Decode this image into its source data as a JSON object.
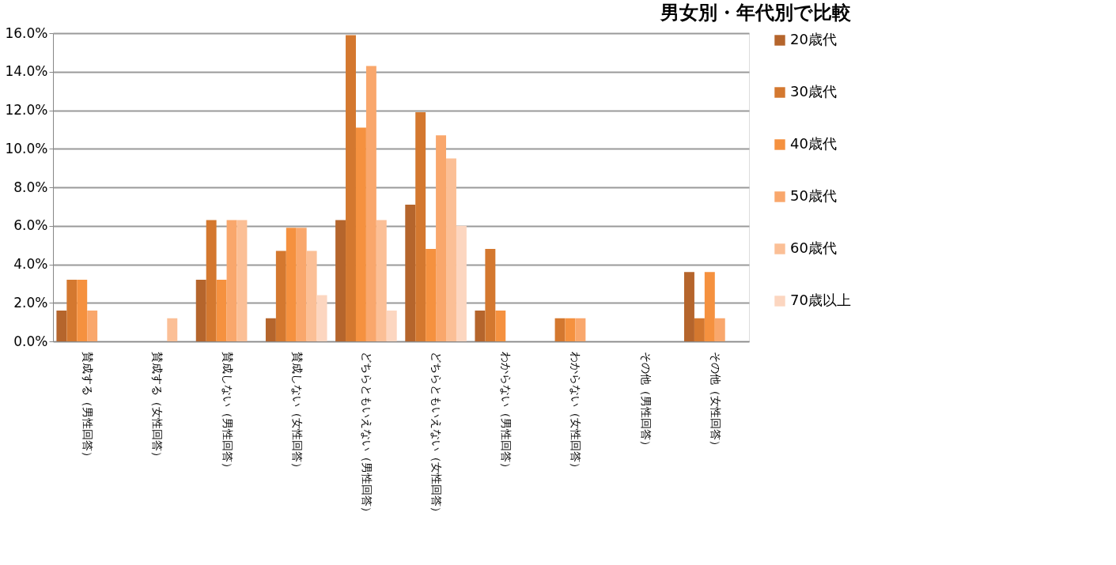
{
  "chart_data": {
    "type": "bar",
    "title": "男女別・年代別で比較",
    "categories": [
      "賛成する（男性回答）",
      "賛成する（女性回答）",
      "賛成しない（男性回答）",
      "賛成しない（女性回答）",
      "どちらともいえない（男性回答）",
      "どちらともいえない（女性回答）",
      "わからない（男性回答）",
      "わからない（女性回答）",
      "その他（男性回答）",
      "その他（女性回答）"
    ],
    "series": [
      {
        "name": "20歳代",
        "color": "#b5652c",
        "values": [
          1.6,
          0,
          3.2,
          1.2,
          6.3,
          7.1,
          1.6,
          0,
          0,
          3.6
        ]
      },
      {
        "name": "30歳代",
        "color": "#d4782f",
        "values": [
          3.2,
          0,
          6.3,
          4.7,
          15.9,
          11.9,
          4.8,
          1.2,
          0,
          1.2
        ]
      },
      {
        "name": "40歳代",
        "color": "#f5913f",
        "values": [
          3.2,
          0,
          3.2,
          5.9,
          11.1,
          4.8,
          1.6,
          1.2,
          0,
          3.6
        ]
      },
      {
        "name": "50歳代",
        "color": "#f9a76c",
        "values": [
          1.6,
          0,
          6.3,
          5.9,
          14.3,
          10.7,
          0,
          1.2,
          0,
          1.2
        ]
      },
      {
        "name": "60歳代",
        "color": "#fbbf96",
        "values": [
          0,
          1.2,
          6.3,
          4.7,
          6.3,
          9.5,
          0,
          0,
          0,
          0
        ]
      },
      {
        "name": "70歳以上",
        "color": "#fcd6c0",
        "values": [
          0,
          0,
          0,
          2.4,
          1.6,
          6.0,
          0,
          0,
          0,
          0
        ]
      }
    ],
    "ylim": [
      0,
      16
    ],
    "yticks": [
      {
        "value": 0,
        "label": "0.0%"
      },
      {
        "value": 2,
        "label": "2.0%"
      },
      {
        "value": 4,
        "label": "4.0%"
      },
      {
        "value": 6,
        "label": "6.0%"
      },
      {
        "value": 8,
        "label": "8.0%"
      },
      {
        "value": 10,
        "label": "10.0%"
      },
      {
        "value": 12,
        "label": "12.0%"
      },
      {
        "value": 14,
        "label": "14.0%"
      },
      {
        "value": 16,
        "label": "16.0%"
      }
    ],
    "grid": "y",
    "legend": "right"
  }
}
